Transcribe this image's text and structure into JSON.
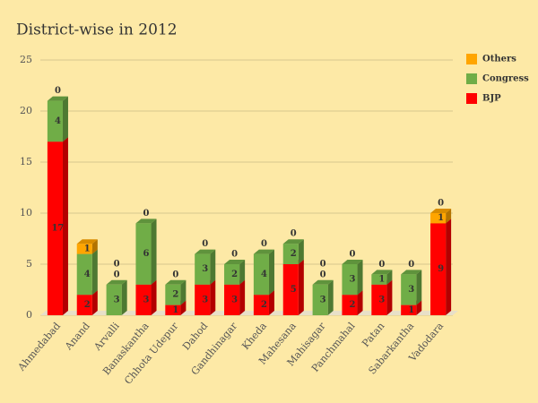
{
  "chart_data": {
    "type": "bar",
    "stacked": true,
    "title": "District-wise in 2012",
    "categories": [
      "Ahmedabad",
      "Anand",
      "Arvalli",
      "Banaskantha",
      "Chhota Udepur",
      "Dahod",
      "Gandhinagar",
      "Kheda",
      "Mahesana",
      "Mahisagar",
      "Panchmahal",
      "Patan",
      "Sabarkantha",
      "Vadodara"
    ],
    "series": [
      {
        "name": "BJP",
        "color": "#ff0000",
        "values": [
          17,
          2,
          0,
          3,
          1,
          3,
          3,
          2,
          5,
          0,
          2,
          3,
          1,
          9
        ]
      },
      {
        "name": "Congress",
        "color": "#70ad47",
        "values": [
          4,
          4,
          3,
          6,
          2,
          3,
          2,
          4,
          2,
          3,
          3,
          1,
          3,
          0
        ]
      },
      {
        "name": "Others",
        "color": "#ffa500",
        "values": [
          0,
          1,
          0,
          0,
          0,
          0,
          0,
          0,
          0,
          0,
          0,
          0,
          0,
          1
        ]
      }
    ],
    "ylim": [
      0,
      25
    ],
    "yticks": [
      0,
      5,
      10,
      15,
      20,
      25
    ],
    "grid": true,
    "legend": "top-right"
  }
}
